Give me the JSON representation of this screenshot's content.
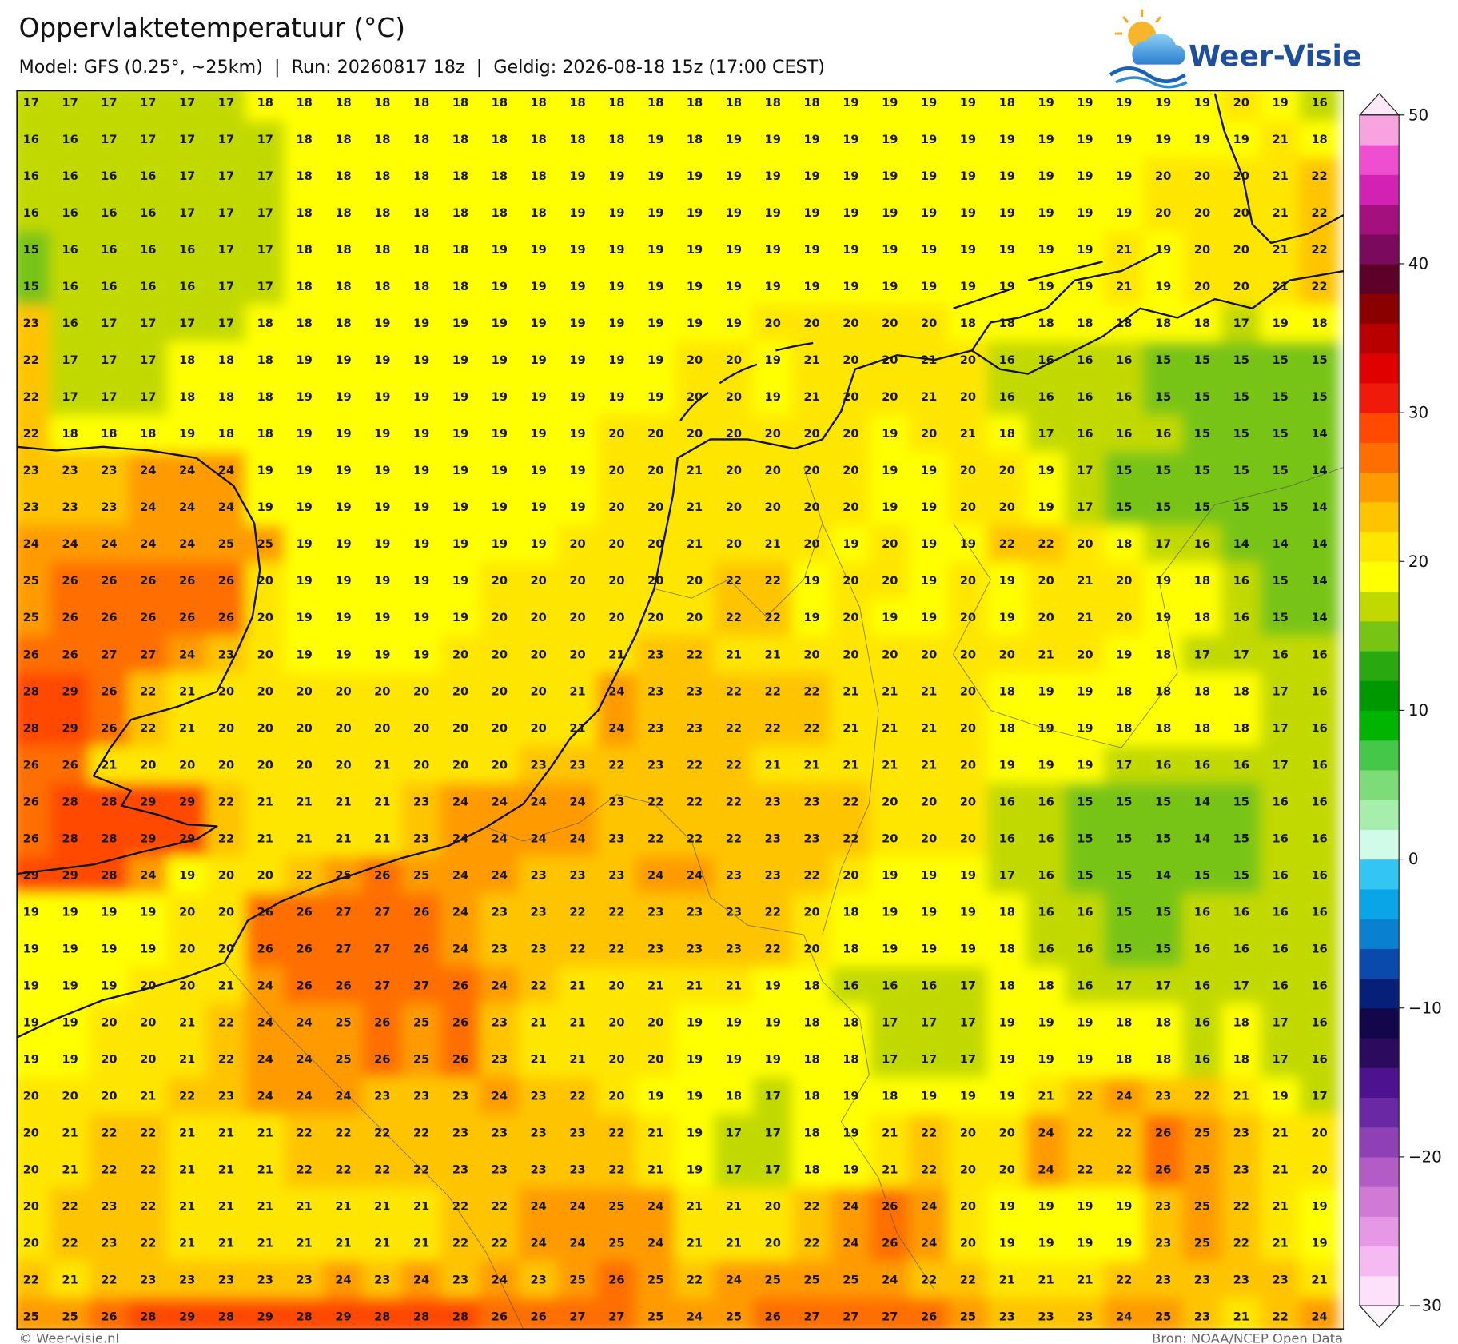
{
  "header": {
    "title": "Oppervlaktetemperatuur (°C)",
    "subtitle": "Model: GFS (0.25°, ~25km)  |  Run: 20260817 18z  |  Geldig: 2026-08-18 15z (17:00 CEST)"
  },
  "logo": {
    "text": "Weer-Visie"
  },
  "map": {
    "grid": [
      [
        17,
        17,
        17,
        17,
        17,
        17,
        18,
        18,
        18,
        18,
        18,
        18,
        18,
        18,
        18,
        18,
        18,
        18,
        18,
        18,
        18,
        19,
        19,
        19,
        19,
        18,
        19,
        19,
        19,
        19,
        19,
        20,
        19,
        16
      ],
      [
        16,
        16,
        17,
        17,
        17,
        17,
        17,
        18,
        18,
        18,
        18,
        18,
        18,
        18,
        18,
        18,
        19,
        18,
        19,
        19,
        19,
        19,
        19,
        19,
        19,
        19,
        19,
        19,
        19,
        19,
        19,
        19,
        21,
        18
      ],
      [
        16,
        16,
        16,
        16,
        17,
        17,
        17,
        18,
        18,
        18,
        18,
        18,
        18,
        18,
        19,
        19,
        19,
        19,
        19,
        19,
        19,
        19,
        19,
        19,
        19,
        19,
        19,
        19,
        19,
        20,
        20,
        20,
        21,
        22
      ],
      [
        16,
        16,
        16,
        16,
        17,
        17,
        17,
        18,
        18,
        18,
        18,
        18,
        18,
        18,
        19,
        19,
        19,
        19,
        19,
        19,
        19,
        19,
        19,
        19,
        19,
        19,
        19,
        19,
        19,
        20,
        20,
        20,
        21,
        22
      ],
      [
        15,
        16,
        16,
        16,
        16,
        17,
        17,
        18,
        18,
        18,
        18,
        18,
        19,
        19,
        19,
        19,
        19,
        19,
        19,
        19,
        19,
        19,
        19,
        19,
        19,
        19,
        19,
        19,
        21,
        19,
        20,
        20,
        21,
        22
      ],
      [
        15,
        16,
        16,
        16,
        16,
        17,
        17,
        18,
        18,
        18,
        18,
        18,
        19,
        19,
        19,
        19,
        19,
        19,
        19,
        19,
        19,
        19,
        19,
        19,
        19,
        19,
        19,
        19,
        21,
        19,
        20,
        20,
        21,
        22
      ],
      [
        23,
        16,
        17,
        17,
        17,
        17,
        18,
        18,
        18,
        19,
        19,
        19,
        19,
        19,
        19,
        19,
        19,
        19,
        19,
        20,
        20,
        20,
        20,
        20,
        18,
        18,
        18,
        18,
        18,
        18,
        18,
        17,
        19,
        18
      ],
      [
        22,
        17,
        17,
        17,
        18,
        18,
        18,
        19,
        19,
        19,
        19,
        19,
        19,
        19,
        19,
        19,
        19,
        20,
        20,
        19,
        21,
        20,
        20,
        21,
        20,
        16,
        16,
        16,
        16,
        15,
        15,
        15,
        15,
        15
      ],
      [
        22,
        17,
        17,
        17,
        18,
        18,
        18,
        19,
        19,
        19,
        19,
        19,
        19,
        19,
        19,
        19,
        19,
        20,
        20,
        19,
        21,
        20,
        20,
        21,
        20,
        16,
        16,
        16,
        16,
        15,
        15,
        15,
        15,
        15
      ],
      [
        22,
        18,
        18,
        18,
        19,
        18,
        18,
        19,
        19,
        19,
        19,
        19,
        19,
        19,
        19,
        20,
        20,
        20,
        20,
        20,
        20,
        20,
        19,
        20,
        21,
        18,
        17,
        16,
        16,
        16,
        15,
        15,
        15,
        14
      ],
      [
        23,
        23,
        23,
        24,
        24,
        24,
        19,
        19,
        19,
        19,
        19,
        19,
        19,
        19,
        19,
        20,
        20,
        21,
        20,
        20,
        20,
        20,
        19,
        19,
        20,
        20,
        19,
        17,
        15,
        15,
        15,
        15,
        15,
        14
      ],
      [
        23,
        23,
        23,
        24,
        24,
        24,
        19,
        19,
        19,
        19,
        19,
        19,
        19,
        19,
        19,
        20,
        20,
        21,
        20,
        20,
        20,
        20,
        19,
        19,
        20,
        20,
        19,
        17,
        15,
        15,
        15,
        15,
        15,
        14
      ],
      [
        24,
        24,
        24,
        24,
        24,
        25,
        25,
        19,
        19,
        19,
        19,
        19,
        19,
        19,
        20,
        20,
        20,
        21,
        20,
        21,
        20,
        19,
        20,
        19,
        19,
        22,
        22,
        20,
        18,
        17,
        16,
        14,
        14,
        14
      ],
      [
        25,
        26,
        26,
        26,
        26,
        26,
        20,
        19,
        19,
        19,
        19,
        19,
        20,
        20,
        20,
        20,
        20,
        20,
        22,
        22,
        19,
        20,
        20,
        19,
        20,
        19,
        20,
        21,
        20,
        19,
        18,
        16,
        15,
        14
      ],
      [
        25,
        26,
        26,
        26,
        26,
        26,
        20,
        19,
        19,
        19,
        19,
        19,
        20,
        20,
        20,
        20,
        20,
        20,
        22,
        22,
        19,
        20,
        19,
        19,
        20,
        19,
        20,
        21,
        20,
        19,
        18,
        16,
        15,
        14
      ],
      [
        26,
        26,
        27,
        27,
        24,
        23,
        20,
        19,
        19,
        19,
        19,
        20,
        20,
        20,
        20,
        21,
        23,
        22,
        21,
        21,
        20,
        20,
        20,
        20,
        20,
        20,
        21,
        20,
        19,
        18,
        17,
        17,
        16,
        16
      ],
      [
        28,
        29,
        26,
        22,
        21,
        20,
        20,
        20,
        20,
        20,
        20,
        20,
        20,
        20,
        21,
        24,
        23,
        23,
        22,
        22,
        22,
        21,
        21,
        21,
        20,
        18,
        19,
        19,
        18,
        18,
        18,
        18,
        17,
        16
      ],
      [
        28,
        29,
        26,
        22,
        21,
        20,
        20,
        20,
        20,
        20,
        20,
        20,
        20,
        20,
        21,
        24,
        23,
        23,
        22,
        22,
        22,
        21,
        21,
        21,
        20,
        18,
        19,
        19,
        18,
        18,
        18,
        18,
        17,
        16
      ],
      [
        26,
        26,
        21,
        20,
        20,
        20,
        20,
        20,
        20,
        21,
        20,
        20,
        20,
        23,
        23,
        22,
        23,
        22,
        22,
        21,
        21,
        21,
        21,
        21,
        20,
        19,
        19,
        19,
        17,
        16,
        16,
        16,
        17,
        16
      ],
      [
        26,
        28,
        28,
        29,
        29,
        22,
        21,
        21,
        21,
        21,
        23,
        24,
        24,
        24,
        24,
        23,
        22,
        22,
        22,
        23,
        23,
        22,
        20,
        20,
        20,
        16,
        16,
        15,
        15,
        15,
        14,
        15,
        16,
        16
      ],
      [
        26,
        28,
        28,
        29,
        29,
        22,
        21,
        21,
        21,
        21,
        23,
        24,
        24,
        24,
        24,
        23,
        22,
        22,
        22,
        23,
        23,
        22,
        20,
        20,
        20,
        16,
        16,
        15,
        15,
        15,
        14,
        15,
        16,
        16
      ],
      [
        29,
        29,
        28,
        24,
        19,
        20,
        20,
        22,
        25,
        26,
        25,
        24,
        24,
        23,
        23,
        23,
        24,
        24,
        23,
        23,
        22,
        20,
        19,
        19,
        19,
        17,
        16,
        15,
        15,
        14,
        15,
        15,
        16,
        16
      ],
      [
        19,
        19,
        19,
        19,
        20,
        20,
        26,
        26,
        27,
        27,
        26,
        24,
        23,
        23,
        22,
        22,
        23,
        23,
        23,
        22,
        20,
        18,
        19,
        19,
        19,
        18,
        16,
        16,
        15,
        15,
        16,
        16,
        16,
        16
      ],
      [
        19,
        19,
        19,
        19,
        20,
        20,
        26,
        26,
        27,
        27,
        26,
        24,
        23,
        23,
        22,
        22,
        23,
        23,
        23,
        22,
        20,
        18,
        19,
        19,
        19,
        18,
        16,
        16,
        15,
        15,
        16,
        16,
        16,
        16
      ],
      [
        19,
        19,
        19,
        20,
        20,
        21,
        24,
        26,
        26,
        27,
        27,
        26,
        24,
        22,
        21,
        20,
        21,
        21,
        21,
        19,
        18,
        16,
        16,
        16,
        17,
        18,
        18,
        16,
        17,
        17,
        16,
        17,
        16,
        16
      ],
      [
        19,
        19,
        20,
        20,
        21,
        22,
        24,
        24,
        25,
        26,
        25,
        26,
        23,
        21,
        21,
        20,
        20,
        19,
        19,
        19,
        18,
        18,
        17,
        17,
        17,
        19,
        19,
        19,
        18,
        18,
        16,
        18,
        17,
        16
      ],
      [
        19,
        19,
        20,
        20,
        21,
        22,
        24,
        24,
        25,
        26,
        25,
        26,
        23,
        21,
        21,
        20,
        20,
        19,
        19,
        19,
        18,
        18,
        17,
        17,
        17,
        19,
        19,
        19,
        18,
        18,
        16,
        18,
        17,
        16
      ],
      [
        20,
        20,
        20,
        21,
        22,
        23,
        24,
        24,
        24,
        23,
        23,
        23,
        24,
        23,
        22,
        20,
        19,
        19,
        18,
        17,
        18,
        19,
        18,
        19,
        19,
        19,
        21,
        22,
        24,
        23,
        22,
        21,
        19,
        17
      ],
      [
        20,
        21,
        22,
        22,
        21,
        21,
        21,
        22,
        22,
        22,
        22,
        23,
        23,
        23,
        23,
        22,
        21,
        19,
        17,
        17,
        18,
        19,
        21,
        22,
        20,
        20,
        24,
        22,
        22,
        26,
        25,
        23,
        21,
        20
      ],
      [
        20,
        21,
        22,
        22,
        21,
        21,
        21,
        22,
        22,
        22,
        22,
        23,
        23,
        23,
        23,
        22,
        21,
        19,
        17,
        17,
        18,
        19,
        21,
        22,
        20,
        20,
        24,
        22,
        22,
        26,
        25,
        23,
        21,
        20
      ],
      [
        20,
        22,
        23,
        22,
        21,
        21,
        21,
        21,
        21,
        21,
        21,
        22,
        22,
        24,
        24,
        25,
        24,
        21,
        21,
        20,
        22,
        24,
        26,
        24,
        20,
        19,
        19,
        19,
        19,
        23,
        25,
        22,
        21,
        19
      ],
      [
        20,
        22,
        23,
        22,
        21,
        21,
        21,
        21,
        21,
        21,
        21,
        22,
        22,
        24,
        24,
        25,
        24,
        21,
        21,
        20,
        22,
        24,
        26,
        24,
        20,
        19,
        19,
        19,
        19,
        23,
        25,
        22,
        21,
        19
      ],
      [
        22,
        21,
        22,
        23,
        23,
        23,
        23,
        23,
        24,
        23,
        24,
        23,
        24,
        23,
        25,
        26,
        25,
        22,
        24,
        25,
        25,
        25,
        24,
        22,
        22,
        21,
        21,
        21,
        22,
        23,
        23,
        23,
        23,
        21
      ],
      [
        25,
        25,
        26,
        28,
        29,
        28,
        29,
        28,
        29,
        28,
        28,
        28,
        26,
        26,
        27,
        27,
        25,
        24,
        25,
        26,
        27,
        27,
        27,
        26,
        25,
        23,
        23,
        23,
        24,
        25,
        23,
        21,
        22,
        24
      ]
    ]
  },
  "colorbar": {
    "lim": [
      -30,
      50
    ],
    "colors": [
      "#fde0fa",
      "#f6baf2",
      "#e698e6",
      "#d07ad6",
      "#b45cc6",
      "#8e40b4",
      "#6b28a4",
      "#4c1290",
      "#2c0a5e",
      "#14064a",
      "#061f78",
      "#0a4aac",
      "#0a80d0",
      "#0aa5e6",
      "#33c5f4",
      "#d0fbe8",
      "#a6eeac",
      "#7ddc78",
      "#45c84a",
      "#00b400",
      "#009800",
      "#2aa810",
      "#78c414",
      "#c2d900",
      "#ffff00",
      "#ffe600",
      "#ffc400",
      "#ff9b00",
      "#ff6e00",
      "#ff4a00",
      "#f01a0a",
      "#e00000",
      "#b80000",
      "#8a0000",
      "#5c0028",
      "#7c0a5c",
      "#a4107e",
      "#d222b4",
      "#f04ed0",
      "#f9a2e0"
    ],
    "ticks": [
      50,
      40,
      30,
      20,
      10,
      0,
      {
        "value": -10,
        "label": "−10"
      },
      {
        "value": -20,
        "label": "−20"
      },
      {
        "value": -30,
        "label": "−30"
      }
    ]
  },
  "footer": {
    "left": "© Weer-visie.nl",
    "right": "Bron: NOAA/NCEP Open Data"
  }
}
